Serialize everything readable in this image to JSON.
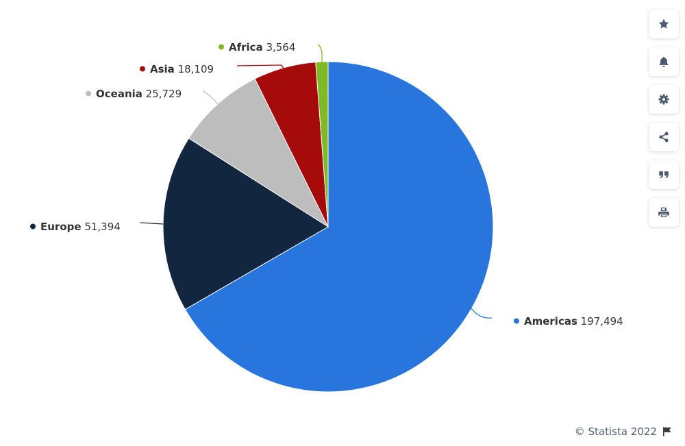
{
  "chart_data": {
    "type": "pie",
    "start_angle_deg": 0,
    "slices": [
      {
        "name": "Americas",
        "value": 197494,
        "value_label": "197,494",
        "color": "#2876dd"
      },
      {
        "name": "Europe",
        "value": 51394,
        "value_label": "51,394",
        "color": "#12263f"
      },
      {
        "name": "Oceania",
        "value": 25729,
        "value_label": "25,729",
        "color": "#bdbdbd"
      },
      {
        "name": "Asia",
        "value": 18109,
        "value_label": "18,109",
        "color": "#a50b0b"
      },
      {
        "name": "Africa",
        "value": 3564,
        "value_label": "3,564",
        "color": "#7fba26"
      }
    ]
  },
  "toolbar": {
    "buttons": [
      {
        "name": "favorite",
        "icon": "star-icon"
      },
      {
        "name": "notification",
        "icon": "bell-icon"
      },
      {
        "name": "settings",
        "icon": "gear-icon"
      },
      {
        "name": "share",
        "icon": "share-icon"
      },
      {
        "name": "cite",
        "icon": "quote-icon"
      },
      {
        "name": "print",
        "icon": "print-icon"
      }
    ],
    "icon_color": "#4a5a70"
  },
  "footer": {
    "credit": "© Statista 2022",
    "flag_icon": "flag-icon"
  }
}
